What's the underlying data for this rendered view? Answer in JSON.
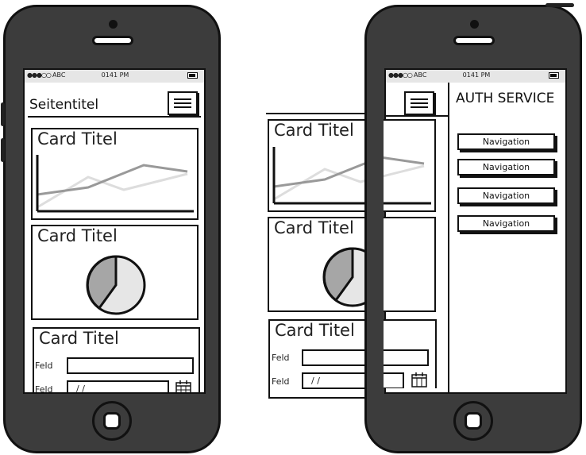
{
  "status_bar": {
    "carrier": "ABC",
    "time": "0141 PM"
  },
  "screen1": {
    "page_title": "Seitentitel",
    "cards": [
      {
        "title": "Card Titel"
      },
      {
        "title": "Card Titel"
      },
      {
        "title": "Card Titel"
      }
    ],
    "form": {
      "field1_label": "Feld",
      "field2_label": "Feld",
      "date_placeholder": "/ /"
    }
  },
  "screen2": {
    "cards": [
      {
        "title": "Card Titel"
      },
      {
        "title": "Card Titel"
      },
      {
        "title": "Card Titel"
      }
    ],
    "form": {
      "field1_label": "Feld",
      "field2_label": "Feld",
      "date_placeholder": "/ /"
    },
    "drawer": {
      "title": "AUTH SERVICE",
      "nav_items": [
        "Navigation",
        "Navigation",
        "Navigation",
        "Navigation"
      ]
    }
  },
  "icons": {
    "menu": "hamburger-menu-icon",
    "calendar": "calendar-icon",
    "battery": "battery-icon"
  },
  "colors": {
    "phone_body": "#3c3c3c",
    "status_bar": "#e6e6e6",
    "chart_dark": "#999999",
    "chart_light": "#dddddd"
  }
}
